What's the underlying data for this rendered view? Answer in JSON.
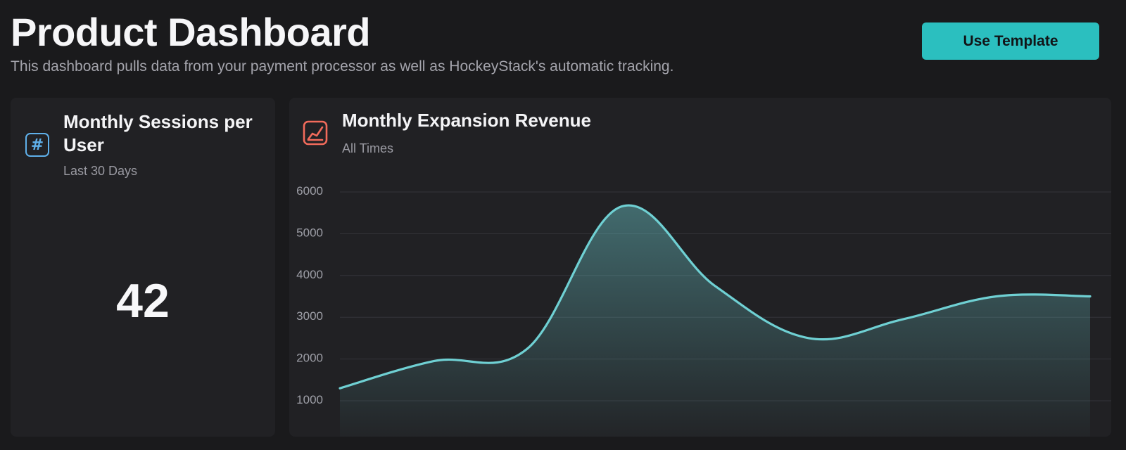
{
  "header": {
    "title": "Product Dashboard",
    "subtitle": "This dashboard pulls data from your payment processor as well as HockeyStack's automatic tracking."
  },
  "actions": {
    "use_template_label": "Use Template"
  },
  "sessions_card": {
    "title": "Monthly Sessions per User",
    "caption": "Last 30 Days",
    "value": "42",
    "icon": "hash-icon",
    "icon_color": "#5fb0ea"
  },
  "revenue_card": {
    "title": "Monthly Expansion Revenue",
    "caption": "All Times",
    "icon": "line-chart-icon",
    "icon_color": "#f26b5b"
  },
  "colors": {
    "accent": "#2bbfbf",
    "series_line": "#6fd0d3"
  },
  "chart_data": {
    "type": "area",
    "title": "Monthly Expansion Revenue",
    "subtitle": "All Times",
    "xlabel": "",
    "ylabel": "",
    "y_ticks": [
      1000,
      2000,
      3000,
      4000,
      5000,
      6000
    ],
    "ylim": [
      1000,
      6000
    ],
    "grid": true,
    "legend": "none",
    "x": [
      0,
      1,
      2,
      3,
      4,
      5,
      6,
      7,
      8
    ],
    "values": [
      1300,
      1950,
      2250,
      5650,
      3750,
      2500,
      2950,
      3500,
      3500
    ]
  }
}
